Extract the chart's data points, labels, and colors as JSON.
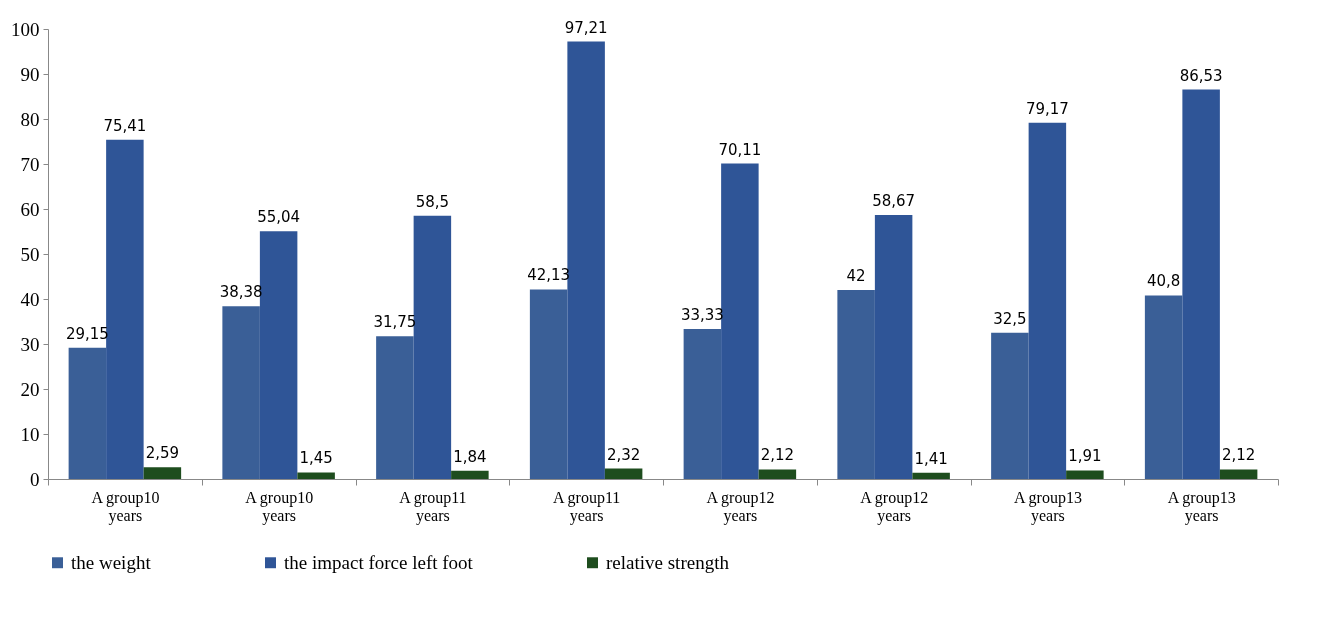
{
  "chart_data": {
    "type": "bar",
    "categories": [
      "A group10 years",
      "A group10 years",
      "A group11 years",
      "A group11 years",
      "A group12 years",
      "A group12 years",
      "A group13 years",
      "A group13 years"
    ],
    "series": [
      {
        "name": "the weight",
        "color": "#3a5f97",
        "values": [
          29.15,
          38.38,
          31.75,
          42.13,
          33.33,
          42,
          32.5,
          40.8
        ],
        "value_labels": [
          "29,15",
          "38,38",
          "31,75",
          "42,13",
          "33,33",
          "42",
          "32,5",
          "40,8"
        ]
      },
      {
        "name": "the impact force left foot",
        "color": "#2f5597",
        "values": [
          75.41,
          55.04,
          58.5,
          97.21,
          70.11,
          58.67,
          79.17,
          86.53
        ],
        "value_labels": [
          "75,41",
          "55,04",
          "58,5",
          "97,21",
          "70,11",
          "58,67",
          "79,17",
          "86,53"
        ]
      },
      {
        "name": "relative strength",
        "color": "#1e4d1e",
        "values": [
          2.59,
          1.45,
          1.84,
          2.32,
          2.12,
          1.41,
          1.91,
          2.12
        ],
        "value_labels": [
          "2,59",
          "1,45",
          "1,84",
          "2,32",
          "2,12",
          "1,41",
          "1,91",
          "2,12"
        ]
      }
    ],
    "ylim": [
      0,
      100
    ],
    "yticks": [
      0,
      10,
      20,
      30,
      40,
      50,
      60,
      70,
      80,
      90,
      100
    ],
    "grid": false,
    "legend": "bottom"
  }
}
